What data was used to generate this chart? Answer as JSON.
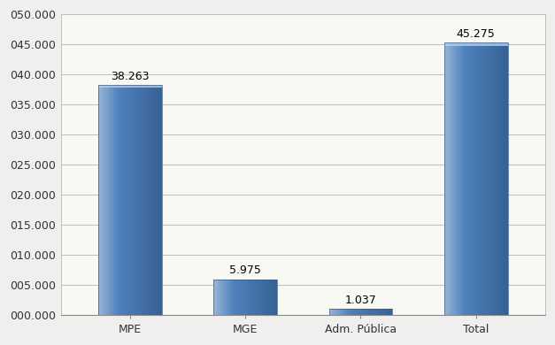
{
  "categories": [
    "MPE",
    "MGE",
    "Adm. Pública",
    "Total"
  ],
  "values": [
    38263,
    5975,
    1037,
    45275
  ],
  "labels": [
    "38.263",
    "5.975",
    "1.037",
    "45.275"
  ],
  "bar_color_main": "#4F81BD",
  "bar_color_left": "#95B3D7",
  "bar_color_right": "#366092",
  "bar_color_top": "#B8CCE4",
  "ylim": [
    0,
    50000
  ],
  "yticks": [
    0,
    5000,
    10000,
    15000,
    20000,
    25000,
    30000,
    35000,
    40000,
    45000,
    50000
  ],
  "ytick_labels": [
    "000.000",
    "005.000",
    "010.000",
    "015.000",
    "020.000",
    "025.000",
    "030.000",
    "035.000",
    "040.000",
    "045.000",
    "050.000"
  ],
  "background_color": "#F0EFED",
  "plot_bg_color": "#F8F8F5",
  "grid_color": "#BEBEBE",
  "label_fontsize": 9,
  "tick_fontsize": 9,
  "bar_width": 0.55
}
